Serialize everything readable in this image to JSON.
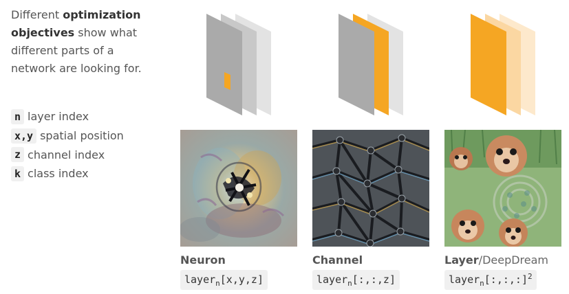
{
  "intro": {
    "part1": "Different ",
    "bold": "optimization objectives",
    "part2": " show what different parts of a network are looking for."
  },
  "legend": [
    {
      "code": "n",
      "text": "layer index"
    },
    {
      "code": "x,y",
      "text": "spatial position"
    },
    {
      "code": "z",
      "text": "channel index"
    },
    {
      "code": "k",
      "text": "class index"
    }
  ],
  "columns": [
    {
      "title": "Neuron",
      "title_suffix": "",
      "formula_base": "layer",
      "formula_sub": "n",
      "formula_args": "[x,y,z]",
      "formula_sup": ""
    },
    {
      "title": "Channel",
      "title_suffix": "",
      "formula_base": "layer",
      "formula_sub": "n",
      "formula_args": "[:,:,z]",
      "formula_sup": ""
    },
    {
      "title": "Layer",
      "title_suffix": "/DeepDream",
      "formula_base": "layer",
      "formula_sub": "n",
      "formula_args": "[:,:,:]",
      "formula_sup": "2"
    }
  ],
  "colors": {
    "accent_orange": "#f5a623",
    "orange_light": "#fbd7a2",
    "orange_lighter": "#fde9cc",
    "gray_dark": "#aaaaaa",
    "gray_mid": "#c8c8c8",
    "gray_light": "#e3e3e3"
  }
}
